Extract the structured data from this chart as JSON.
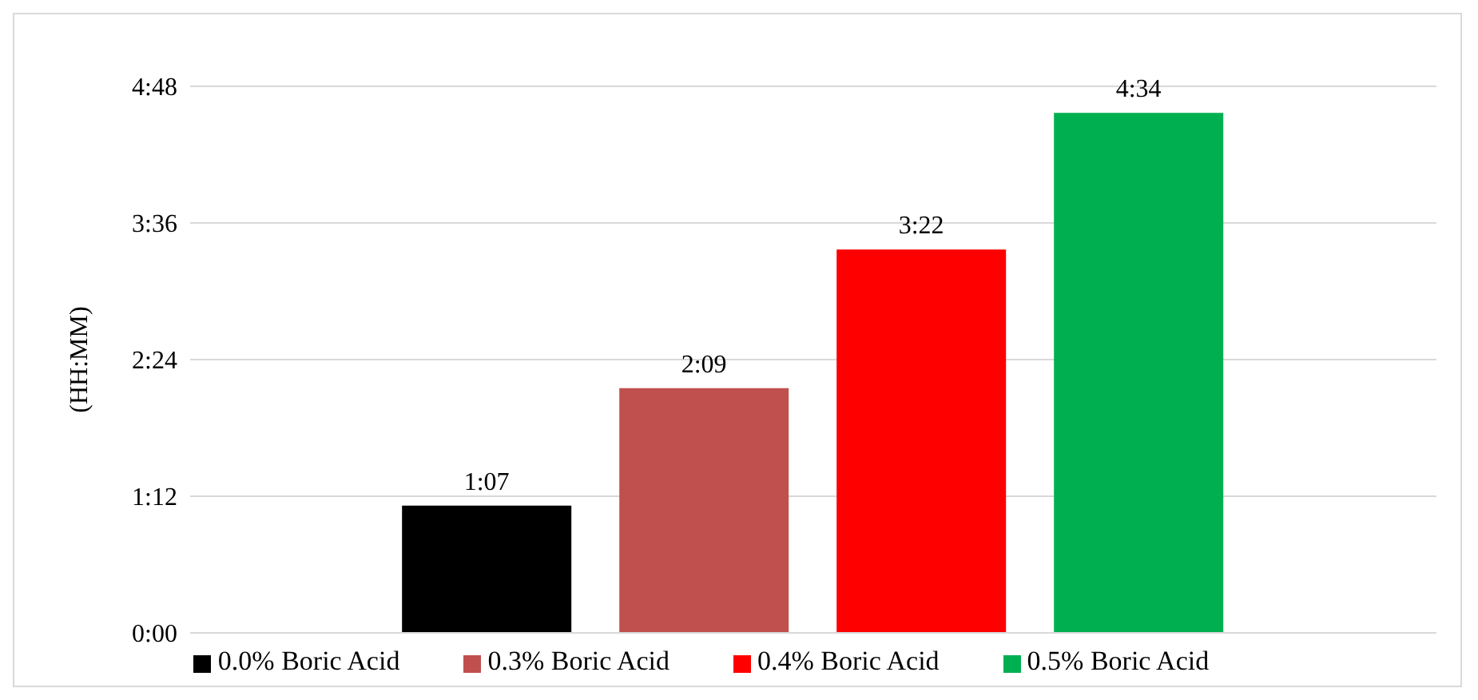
{
  "chart_data": {
    "type": "bar",
    "ylabel": "(HH:MM)",
    "categories": [
      null
    ],
    "series": [
      {
        "name": "0.0% Boric Acid",
        "color": "#000000",
        "values": [
          1.1167
        ],
        "value_labels": [
          "1:07"
        ]
      },
      {
        "name": "0.3% Boric Acid",
        "color": "#c0504d",
        "values": [
          2.15
        ],
        "value_labels": [
          "2:09"
        ]
      },
      {
        "name": "0.4% Boric Acid",
        "color": "#ff0000",
        "values": [
          3.3667
        ],
        "value_labels": [
          "3:22"
        ]
      },
      {
        "name": "0.5% Boric Acid",
        "color": "#00b050",
        "values": [
          4.5667
        ],
        "value_labels": [
          "4:34"
        ]
      }
    ],
    "ylim": [
      0,
      4.8
    ],
    "yticks": [
      {
        "value": 0,
        "label": "0:00"
      },
      {
        "value": 1.2,
        "label": "1:12"
      },
      {
        "value": 2.4,
        "label": "2:24"
      },
      {
        "value": 3.6,
        "label": "3:36"
      },
      {
        "value": 4.8,
        "label": "4:48"
      }
    ],
    "grid": "y",
    "legend": "bottom"
  }
}
